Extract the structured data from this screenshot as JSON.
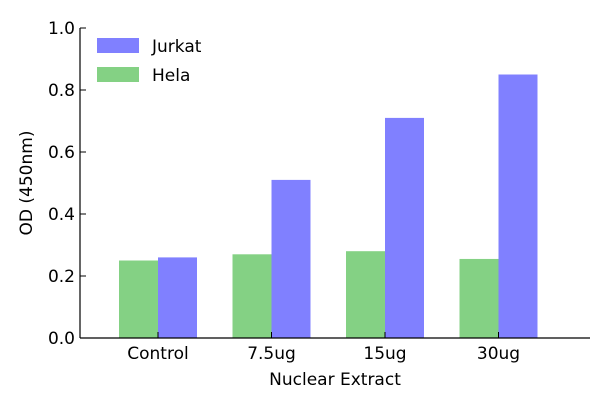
{
  "chart_data": {
    "type": "bar",
    "title": "",
    "xlabel": "Nuclear Extract",
    "ylabel": "OD (450nm)",
    "ylim": [
      0,
      1.0
    ],
    "yticks": [
      "0.0",
      "0.2",
      "0.4",
      "0.6",
      "0.8",
      "1.0"
    ],
    "categories": [
      "Control",
      "7.5ug",
      "15ug",
      "30ug"
    ],
    "series": [
      {
        "name": "Hela",
        "color": "#84d184",
        "values": [
          0.25,
          0.27,
          0.28,
          0.255
        ]
      },
      {
        "name": "Jurkat",
        "color": "#8080ff",
        "values": [
          0.26,
          0.51,
          0.71,
          0.85
        ]
      }
    ],
    "legend": {
      "position": "top-left",
      "entries": [
        {
          "name": "Jurkat",
          "color": "#8080ff"
        },
        {
          "name": "Hela",
          "color": "#84d184"
        }
      ]
    },
    "grid": false
  }
}
